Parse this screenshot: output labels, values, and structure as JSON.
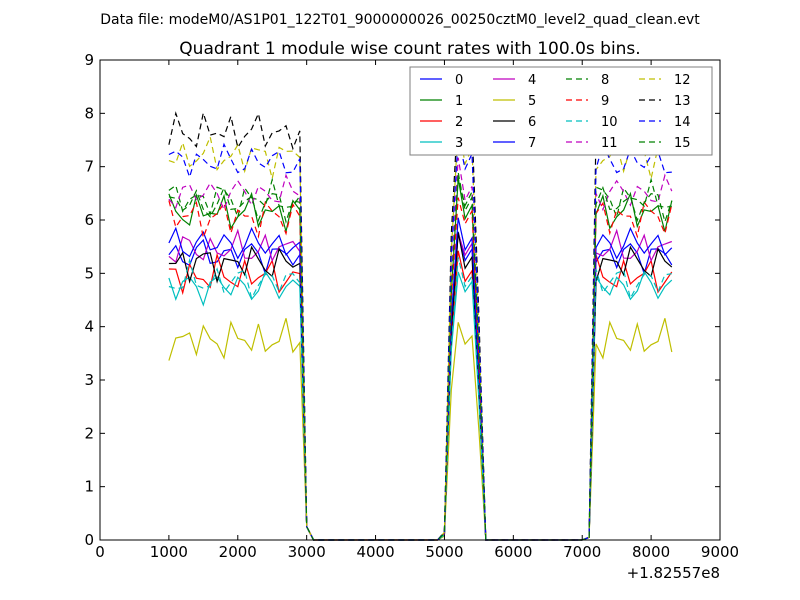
{
  "chart_data": {
    "type": "line",
    "suptitle": "Data file: modeM0/AS1P01_122T01_9000000026_00250cztM0_level2_quad_clean.evt",
    "title": "Quadrant 1 module wise count rates with 100.0s bins.",
    "xlabel": "",
    "ylabel": "",
    "x_offset_label": "+1.82557e8",
    "xlim": [
      0,
      9000
    ],
    "ylim": [
      0,
      9
    ],
    "x_ticks": [
      0,
      1000,
      2000,
      3000,
      4000,
      5000,
      6000,
      7000,
      8000,
      9000
    ],
    "y_ticks": [
      0,
      1,
      2,
      3,
      4,
      5,
      6,
      7,
      8,
      9
    ],
    "grid": false,
    "legend_placement": "top-right",
    "legend_columns": 4,
    "segments": [
      {
        "x_start": 1000,
        "x_end": 2900,
        "step": 100
      },
      {
        "x_start": 3000,
        "x_end": 3000,
        "step": 100
      },
      {
        "x_start": 3100,
        "x_end": 4900,
        "step": 100
      },
      {
        "x_start": 5000,
        "x_end": 5600,
        "step": 100
      },
      {
        "x_start": 5700,
        "x_end": 7000,
        "step": 100
      },
      {
        "x_start": 7100,
        "x_end": 8300,
        "step": 100
      }
    ],
    "series": [
      {
        "name": "0",
        "color": "#0000ff",
        "dash": "solid",
        "base": 5.35
      },
      {
        "name": "1",
        "color": "#008000",
        "dash": "solid",
        "base": 6.15
      },
      {
        "name": "2",
        "color": "#ff0000",
        "dash": "solid",
        "base": 4.95
      },
      {
        "name": "3",
        "color": "#00bfbf",
        "dash": "solid",
        "base": 4.75
      },
      {
        "name": "4",
        "color": "#bf00bf",
        "dash": "solid",
        "base": 5.45
      },
      {
        "name": "5",
        "color": "#bfbf00",
        "dash": "solid",
        "base": 3.75
      },
      {
        "name": "6",
        "color": "#000000",
        "dash": "solid",
        "base": 5.2
      },
      {
        "name": "7",
        "color": "#0000ff",
        "dash": "solid",
        "base": 5.55
      },
      {
        "name": "8",
        "color": "#008000",
        "dash": "dashed",
        "base": 6.4
      },
      {
        "name": "9",
        "color": "#ff0000",
        "dash": "dashed",
        "base": 6.05
      },
      {
        "name": "10",
        "color": "#00bfbf",
        "dash": "dashed",
        "base": 4.85
      },
      {
        "name": "11",
        "color": "#bf00bf",
        "dash": "dashed",
        "base": 6.5
      },
      {
        "name": "12",
        "color": "#bfbf00",
        "dash": "dashed",
        "base": 7.2
      },
      {
        "name": "13",
        "color": "#000000",
        "dash": "dashed",
        "base": 7.65
      },
      {
        "name": "14",
        "color": "#0000ff",
        "dash": "dashed",
        "base": 7.1
      },
      {
        "name": "15",
        "color": "#008000",
        "dash": "dashed",
        "base": 6.3
      }
    ],
    "mid_burst": {
      "x": [
        5000,
        5100,
        5200,
        5300,
        5400,
        5500,
        5600
      ],
      "scale": [
        0.02,
        0.75,
        1.08,
        0.98,
        1.02,
        0.55,
        0.0
      ]
    }
  }
}
